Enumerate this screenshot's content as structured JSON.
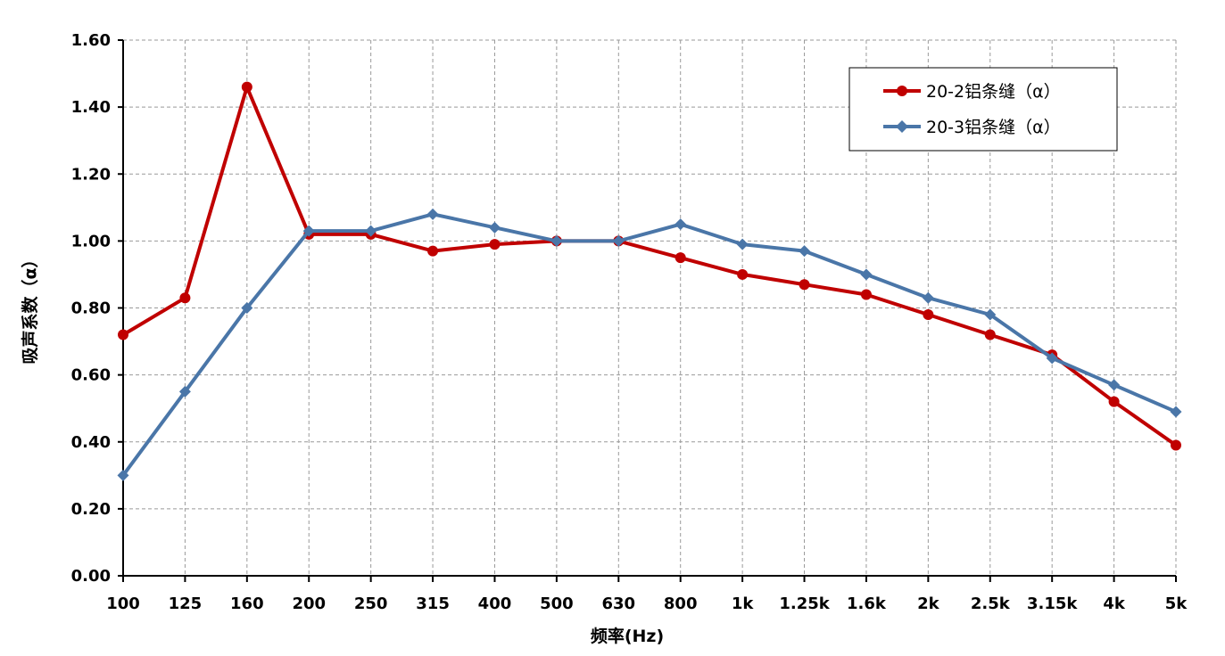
{
  "chart_data": {
    "type": "line",
    "title": "",
    "xlabel": "频率(Hz)",
    "ylabel": "吸声系数（α）",
    "categories": [
      "100",
      "125",
      "160",
      "200",
      "250",
      "315",
      "400",
      "500",
      "630",
      "800",
      "1k",
      "1.25k",
      "1.6k",
      "2k",
      "2.5k",
      "3.15k",
      "4k",
      "5k"
    ],
    "ylim": [
      0,
      1.6
    ],
    "yticks": [
      "0.00",
      "0.20",
      "0.40",
      "0.60",
      "0.80",
      "1.00",
      "1.20",
      "1.40",
      "1.60"
    ],
    "grid": true,
    "legend_position": "top-right",
    "series": [
      {
        "name": "20-2铝条缝（α）",
        "color": "#C00000",
        "marker": "circle",
        "values": [
          0.72,
          0.83,
          1.46,
          1.02,
          1.02,
          0.97,
          0.99,
          1.0,
          1.0,
          0.95,
          0.9,
          0.87,
          0.84,
          0.78,
          0.72,
          0.66,
          0.52,
          0.39
        ]
      },
      {
        "name": "20-3铝条缝（α）",
        "color": "#4A76A8",
        "marker": "diamond",
        "values": [
          0.3,
          0.55,
          0.8,
          1.03,
          1.03,
          1.08,
          1.04,
          1.0,
          1.0,
          1.05,
          0.99,
          0.97,
          0.9,
          0.83,
          0.78,
          0.65,
          0.57,
          0.49
        ]
      }
    ]
  }
}
